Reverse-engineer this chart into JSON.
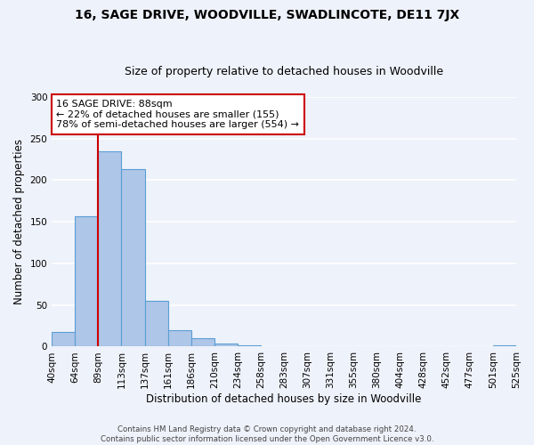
{
  "title": "16, SAGE DRIVE, WOODVILLE, SWADLINCOTE, DE11 7JX",
  "subtitle": "Size of property relative to detached houses in Woodville",
  "xlabel": "Distribution of detached houses by size in Woodville",
  "ylabel": "Number of detached properties",
  "bar_values": [
    18,
    157,
    235,
    213,
    55,
    20,
    10,
    4,
    2,
    0,
    0,
    0,
    0,
    0,
    0,
    0,
    0,
    0,
    0,
    2
  ],
  "bin_labels": [
    "40sqm",
    "64sqm",
    "89sqm",
    "113sqm",
    "137sqm",
    "161sqm",
    "186sqm",
    "210sqm",
    "234sqm",
    "258sqm",
    "283sqm",
    "307sqm",
    "331sqm",
    "355sqm",
    "380sqm",
    "404sqm",
    "428sqm",
    "452sqm",
    "477sqm",
    "501sqm",
    "525sqm"
  ],
  "bar_color": "#aec6e8",
  "bar_edge_color": "#5a9fd4",
  "vline_x": 2,
  "vline_color": "#cc0000",
  "annotation_line1": "16 SAGE DRIVE: 88sqm",
  "annotation_line2": "← 22% of detached houses are smaller (155)",
  "annotation_line3": "78% of semi-detached houses are larger (554) →",
  "annotation_box_color": "#cc0000",
  "annotation_box_bg": "#ffffff",
  "ylim": [
    0,
    300
  ],
  "yticks": [
    0,
    50,
    100,
    150,
    200,
    250,
    300
  ],
  "footer_text": "Contains HM Land Registry data © Crown copyright and database right 2024.\nContains public sector information licensed under the Open Government Licence v3.0.",
  "background_color": "#eef2fa",
  "grid_color": "#ffffff",
  "title_fontsize": 10,
  "subtitle_fontsize": 9,
  "axis_label_fontsize": 8.5,
  "tick_fontsize": 7.5,
  "annotation_fontsize": 8
}
